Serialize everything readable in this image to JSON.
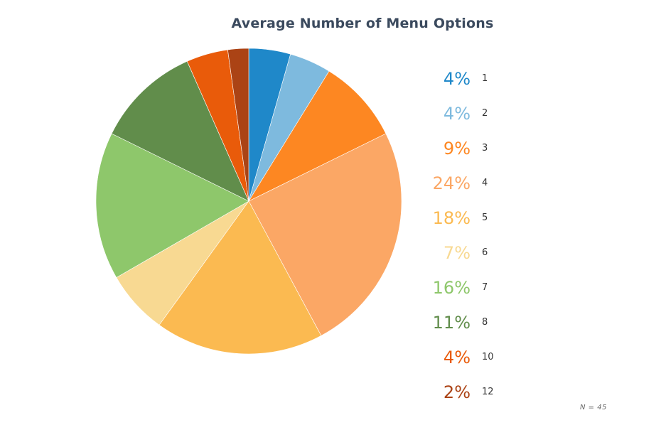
{
  "chart_data": {
    "type": "pie",
    "title": "Average Number of Menu Options",
    "note": "N = 45",
    "slices": [
      {
        "label": "1",
        "percent_label": "4%",
        "value": 4.4,
        "color": "#1f88c9"
      },
      {
        "label": "2",
        "percent_label": "4%",
        "value": 4.4,
        "color": "#7ebade"
      },
      {
        "label": "3",
        "percent_label": "9%",
        "value": 8.9,
        "color": "#fd8722"
      },
      {
        "label": "4",
        "percent_label": "24%",
        "value": 24.4,
        "color": "#fba765"
      },
      {
        "label": "5",
        "percent_label": "18%",
        "value": 17.8,
        "color": "#fbba51"
      },
      {
        "label": "6",
        "percent_label": "7%",
        "value": 6.7,
        "color": "#f8d992"
      },
      {
        "label": "7",
        "percent_label": "16%",
        "value": 15.6,
        "color": "#8ec76b"
      },
      {
        "label": "8",
        "percent_label": "11%",
        "value": 11.1,
        "color": "#618d4b"
      },
      {
        "label": "10",
        "percent_label": "4%",
        "value": 4.4,
        "color": "#e95b0a"
      },
      {
        "label": "12",
        "percent_label": "2%",
        "value": 2.2,
        "color": "#ab4315"
      }
    ],
    "legend_position": "right"
  }
}
